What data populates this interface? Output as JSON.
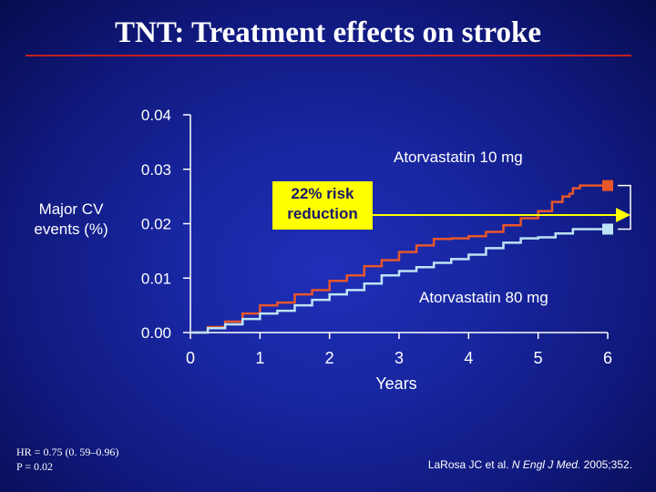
{
  "slide": {
    "title": "TNT: Treatment effects on stroke",
    "accent_color": "#c81e1e"
  },
  "annotation": {
    "text_line1": "22% risk",
    "text_line2": "reduction",
    "box_color": "#ffff00"
  },
  "footnotes": {
    "hr": "HR = 0.75 (0. 59–0.96)",
    "p": "P = 0.02",
    "citation_authors": "LaRosa JC et al.",
    "citation_journal": "N Engl J Med.",
    "citation_year": "2005;352."
  },
  "chart_data": {
    "type": "line",
    "title": "TNT: Treatment effects on stroke",
    "xlabel": "Years",
    "ylabel_line1": "Major CV",
    "ylabel_line2": "events (%)",
    "xlim": [
      0,
      6
    ],
    "ylim": [
      0,
      0.04
    ],
    "xticks": [
      0,
      1,
      2,
      3,
      4,
      5,
      6
    ],
    "xtick_labels": [
      "0",
      "1",
      "2",
      "3",
      "4",
      "5",
      "6"
    ],
    "yticks": [
      0,
      0.01,
      0.02,
      0.03,
      0.04
    ],
    "ytick_labels": [
      "0.00",
      "0.01",
      "0.02",
      "0.03",
      "0.04"
    ],
    "grid": false,
    "series": [
      {
        "name": "Atorvastatin 10 mg",
        "color": "#e8562a",
        "marker_color": "#e8562a",
        "x": [
          0,
          0.25,
          0.5,
          0.75,
          1.0,
          1.25,
          1.5,
          1.75,
          2.0,
          2.25,
          2.5,
          2.75,
          3.0,
          3.25,
          3.5,
          3.75,
          4.0,
          4.25,
          4.5,
          4.75,
          5.0,
          5.2,
          5.35,
          5.45,
          5.5,
          5.6,
          5.8,
          6.0
        ],
        "y": [
          0,
          0.001,
          0.002,
          0.0035,
          0.005,
          0.0055,
          0.007,
          0.0078,
          0.0095,
          0.0105,
          0.0122,
          0.0133,
          0.0148,
          0.016,
          0.0172,
          0.0173,
          0.0177,
          0.0185,
          0.0197,
          0.021,
          0.0223,
          0.024,
          0.025,
          0.0255,
          0.0265,
          0.027,
          0.027,
          0.027
        ]
      },
      {
        "name": "Atorvastatin 80 mg",
        "color": "#bde3f7",
        "marker_color": "#bde3f7",
        "x": [
          0,
          0.25,
          0.5,
          0.75,
          1.0,
          1.25,
          1.5,
          1.75,
          2.0,
          2.25,
          2.5,
          2.75,
          3.0,
          3.25,
          3.5,
          3.75,
          4.0,
          4.25,
          4.5,
          4.75,
          5.0,
          5.25,
          5.5,
          5.75,
          6.0
        ],
        "y": [
          0,
          0.0008,
          0.0015,
          0.0025,
          0.0035,
          0.004,
          0.005,
          0.006,
          0.007,
          0.0078,
          0.009,
          0.0105,
          0.0113,
          0.012,
          0.0128,
          0.0135,
          0.0143,
          0.0155,
          0.0165,
          0.0173,
          0.0175,
          0.0182,
          0.019,
          0.019,
          0.019
        ]
      }
    ],
    "annotation": "22% risk reduction"
  }
}
